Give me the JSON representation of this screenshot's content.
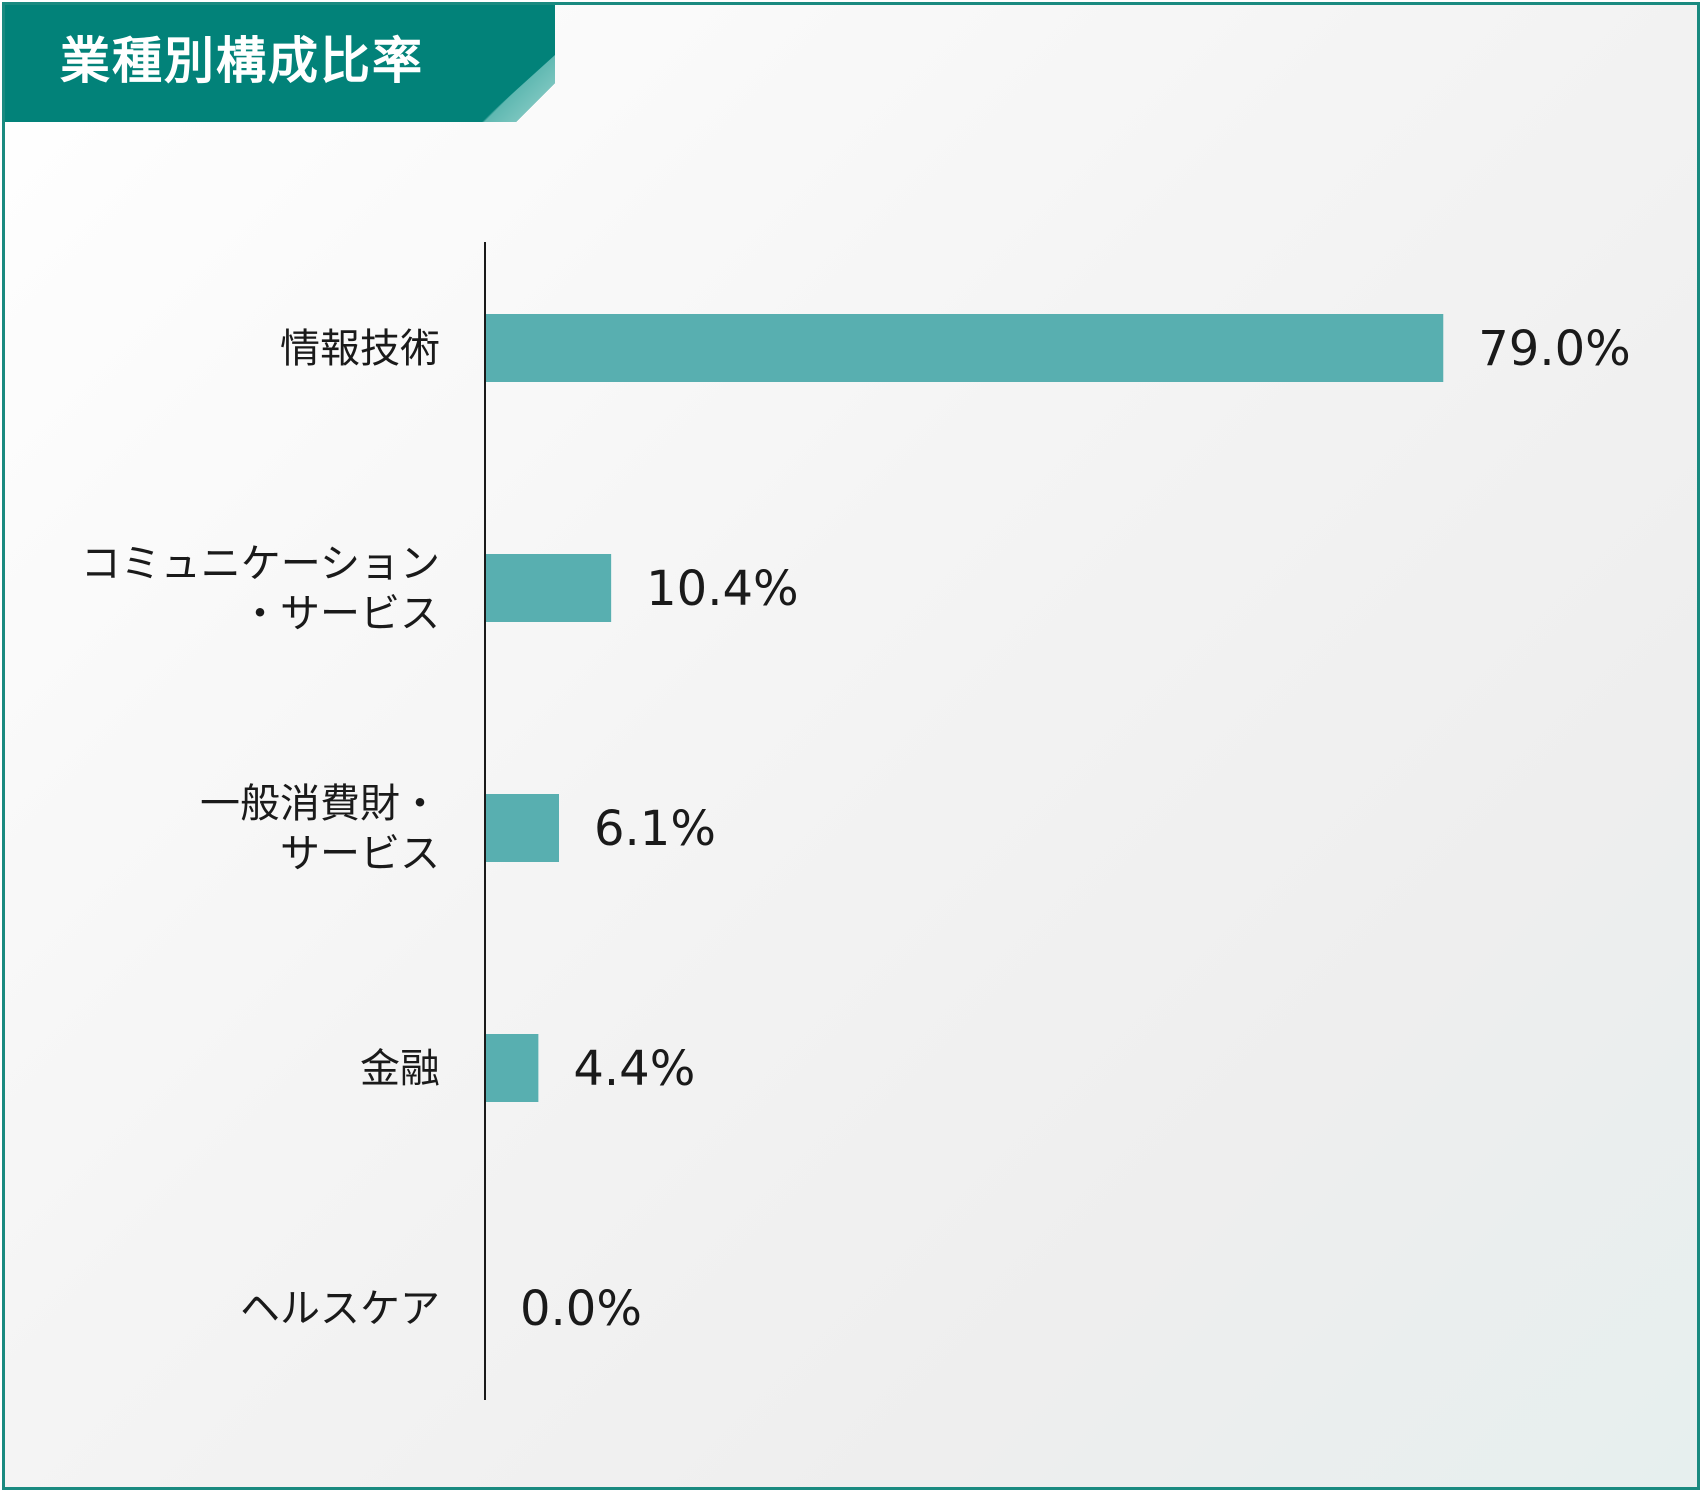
{
  "title": "業種別構成比率",
  "colors": {
    "accent": "#028279",
    "border": "#1a8a80",
    "bar": "#58afb0",
    "text": "#1a1a1a"
  },
  "chart_data": {
    "type": "bar",
    "orientation": "horizontal",
    "title": "業種別構成比率",
    "categories": [
      [
        "情報技術"
      ],
      [
        "コミュニケーション",
        "・サービス"
      ],
      [
        "一般消費財・",
        "サービス"
      ],
      [
        "金融"
      ],
      [
        "ヘルスケア"
      ]
    ],
    "values": [
      79.0,
      10.4,
      6.1,
      4.4,
      0.0
    ],
    "value_labels": [
      "79.0%",
      "10.4%",
      "6.1%",
      "4.4%",
      "0.0%"
    ],
    "xlim": [
      0,
      100
    ],
    "grid": false,
    "legend": "none"
  }
}
